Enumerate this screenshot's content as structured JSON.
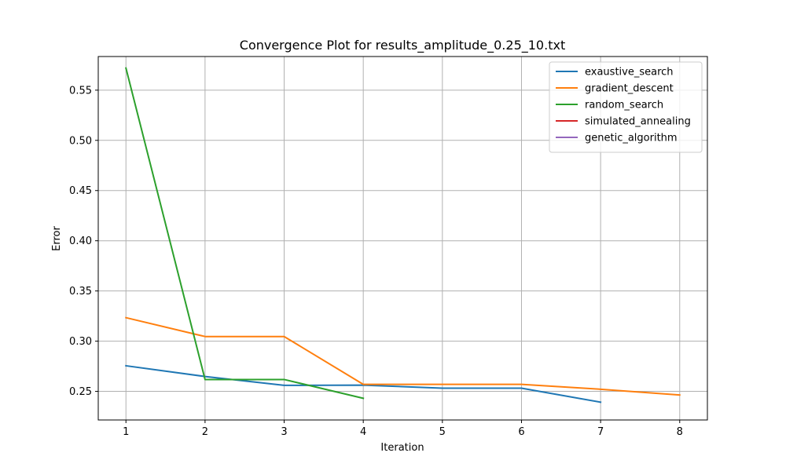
{
  "chart_data": {
    "type": "line",
    "title": "Convergence Plot for results_amplitude_0.25_10.txt",
    "xlabel": "Iteration",
    "ylabel": "Error",
    "xlim": [
      0.65,
      8.35
    ],
    "ylim": [
      0.2215,
      0.5835
    ],
    "xticks": [
      1,
      2,
      3,
      4,
      5,
      6,
      7,
      8
    ],
    "yticks": [
      0.25,
      0.3,
      0.35,
      0.4,
      0.45,
      0.5,
      0.55
    ],
    "ytick_labels": [
      "0.25",
      "0.30",
      "0.35",
      "0.40",
      "0.45",
      "0.50",
      "0.55"
    ],
    "grid": true,
    "legend_position": "top-right",
    "series": [
      {
        "name": "exaustive_search",
        "color": "#1f77b4",
        "x": [
          1,
          2,
          3,
          4,
          5,
          6,
          7
        ],
        "y": [
          0.2755,
          0.2648,
          0.256,
          0.2562,
          0.2532,
          0.2532,
          0.2392
        ]
      },
      {
        "name": "gradient_descent",
        "color": "#ff7f0e",
        "x": [
          1,
          2,
          3,
          4,
          5,
          6,
          7,
          8
        ],
        "y": [
          0.3234,
          0.3046,
          0.3046,
          0.257,
          0.257,
          0.257,
          0.2521,
          0.2464
        ]
      },
      {
        "name": "random_search",
        "color": "#2ca02c",
        "x": [
          1,
          2,
          3,
          4
        ],
        "y": [
          0.572,
          0.2618,
          0.2618,
          0.2431
        ]
      },
      {
        "name": "simulated_annealing",
        "color": "#d62728",
        "x": [],
        "y": []
      },
      {
        "name": "genetic_algorithm",
        "color": "#9467bd",
        "x": [],
        "y": []
      }
    ]
  }
}
